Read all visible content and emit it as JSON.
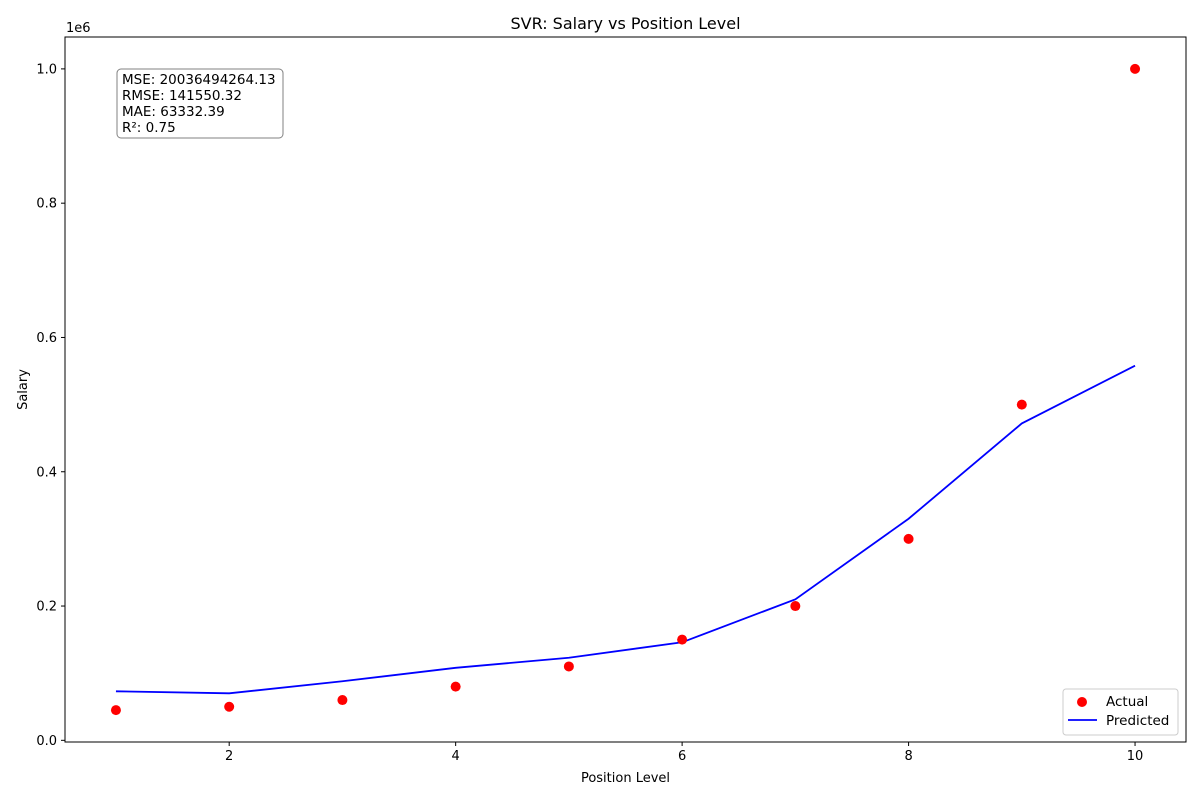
{
  "chart_data": {
    "type": "scatter",
    "title": "SVR: Salary vs Position Level",
    "xlabel": "Position Level",
    "ylabel": "Salary",
    "y_scale_label": "1e6",
    "xlim": [
      0.55,
      10.45
    ],
    "ylim": [
      -0.0025,
      1.0475
    ],
    "x_ticks": [
      2,
      4,
      6,
      8,
      10
    ],
    "y_ticks": [
      0.0,
      0.2,
      0.4,
      0.6,
      0.8,
      1.0
    ],
    "y_tick_labels": [
      "0.0",
      "0.2",
      "0.4",
      "0.6",
      "0.8",
      "1.0"
    ],
    "grid": false,
    "legend_position": "lower-right",
    "series": [
      {
        "name": "Actual",
        "kind": "scatter",
        "color": "#ff0000",
        "x": [
          1,
          2,
          3,
          4,
          5,
          6,
          7,
          8,
          9,
          10
        ],
        "y": [
          0.045,
          0.05,
          0.06,
          0.08,
          0.11,
          0.15,
          0.2,
          0.3,
          0.5,
          1.0
        ]
      },
      {
        "name": "Predicted",
        "kind": "line",
        "color": "#0000ff",
        "x": [
          1,
          2,
          3,
          4,
          5,
          6,
          7,
          8,
          9,
          10
        ],
        "y": [
          0.073,
          0.07,
          0.088,
          0.108,
          0.123,
          0.146,
          0.21,
          0.33,
          0.472,
          0.558
        ]
      }
    ],
    "annotation": [
      "MSE: 20036494264.13",
      "RMSE: 141550.32",
      "MAE: 63332.39",
      "R²: 0.75"
    ]
  }
}
